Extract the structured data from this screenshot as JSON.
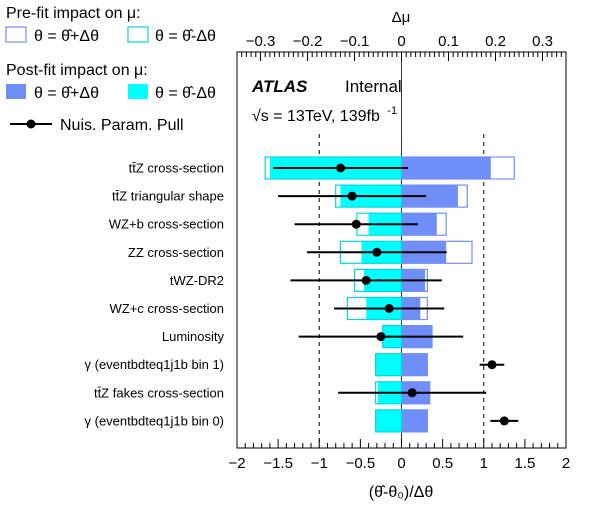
{
  "colors": {
    "up": "#6f8ef7",
    "down": "#00ffff",
    "prefit_up_edge": "#6f8ef7",
    "prefit_down_edge": "#00d8d8",
    "pull": "#000000"
  },
  "legend": {
    "prefit_title": "Pre-fit impact on  μ:",
    "prefit_up": "θ = θ̂+Δθ",
    "prefit_down": "θ = θ̂-Δθ",
    "postfit_title": "Post-fit impact on  μ:",
    "postfit_up": "θ = θ̂+Δθ",
    "postfit_down": "θ = θ̂-Δθ",
    "pull_label": "Nuis. Param. Pull"
  },
  "atlas": {
    "logo": "ATLAS",
    "status": "Internal",
    "energy_text": "√s = 13TeV, 139fb",
    "energy_sup": "-1"
  },
  "chart_data": {
    "type": "ranking",
    "top_axis": {
      "label": "Δμ",
      "ticks": [
        "−0.3",
        "−0.2",
        "−0.1",
        "0",
        "0.1",
        "0.2",
        "0.3"
      ],
      "tick_values": [
        -0.3,
        -0.2,
        -0.1,
        0,
        0.1,
        0.2,
        0.3
      ],
      "range": [
        -0.35,
        0.35
      ]
    },
    "bottom_axis": {
      "label": "(θ̂-θ₀)/Δθ",
      "ticks": [
        "−2",
        "−1.5",
        "−1",
        "−0.5",
        "0",
        "0.5",
        "1",
        "1.5",
        "2"
      ],
      "tick_values": [
        -2,
        -1.5,
        -1,
        -0.5,
        0,
        0.5,
        1,
        1.5,
        2
      ],
      "range": [
        -2,
        2
      ]
    },
    "reference_lines": [
      -1,
      1
    ],
    "parameters": [
      {
        "label": "tt̄Z cross-section",
        "prefit_up": 0.24,
        "prefit_down": -0.29,
        "postfit_up": 0.19,
        "postfit_down": -0.28,
        "pull": -0.74,
        "err_lo": 0.82,
        "err_hi": 0.82
      },
      {
        "label": "tt̄Z triangular shape",
        "prefit_up": 0.14,
        "prefit_down": -0.14,
        "postfit_up": 0.12,
        "postfit_down": -0.13,
        "pull": -0.6,
        "err_lo": 0.9,
        "err_hi": 0.9
      },
      {
        "label": "WZ+b cross-section",
        "prefit_up": 0.095,
        "prefit_down": -0.095,
        "postfit_up": 0.075,
        "postfit_down": -0.07,
        "pull": -0.55,
        "err_lo": 0.75,
        "err_hi": 0.75
      },
      {
        "label": "ZZ cross-section",
        "prefit_up": 0.15,
        "prefit_down": -0.13,
        "postfit_up": 0.095,
        "postfit_down": -0.085,
        "pull": -0.3,
        "err_lo": 0.85,
        "err_hi": 0.85
      },
      {
        "label": "tWZ-DR2",
        "prefit_up": 0.055,
        "prefit_down": -0.1,
        "postfit_up": 0.05,
        "postfit_down": -0.08,
        "pull": -0.43,
        "err_lo": 0.92,
        "err_hi": 0.92
      },
      {
        "label": "WZ+c cross-section",
        "prefit_up": 0.055,
        "prefit_down": -0.115,
        "postfit_up": 0.04,
        "postfit_down": -0.075,
        "pull": -0.15,
        "err_lo": 0.67,
        "err_hi": 0.67
      },
      {
        "label": "Luminosity",
        "prefit_up": 0.065,
        "prefit_down": -0.04,
        "postfit_up": 0.065,
        "postfit_down": -0.04,
        "pull": -0.25,
        "err_lo": 1.0,
        "err_hi": 1.0
      },
      {
        "label": "γ (eventbdteq1j1b bin 1)",
        "prefit_up": 0.055,
        "prefit_down": -0.055,
        "postfit_up": 0.055,
        "postfit_down": -0.055,
        "pull": 1.1,
        "err_lo": 0.15,
        "err_hi": 0.15
      },
      {
        "label": "tt̄Z fakes cross-section",
        "prefit_up": 0.06,
        "prefit_down": -0.055,
        "postfit_up": 0.06,
        "postfit_down": -0.05,
        "pull": 0.13,
        "err_lo": 0.9,
        "err_hi": 0.9
      },
      {
        "label": "γ (eventbdteq1j1b bin 0)",
        "prefit_up": 0.055,
        "prefit_down": -0.055,
        "postfit_up": 0.055,
        "postfit_down": -0.055,
        "pull": 1.25,
        "err_lo": 0.17,
        "err_hi": 0.17
      }
    ]
  }
}
